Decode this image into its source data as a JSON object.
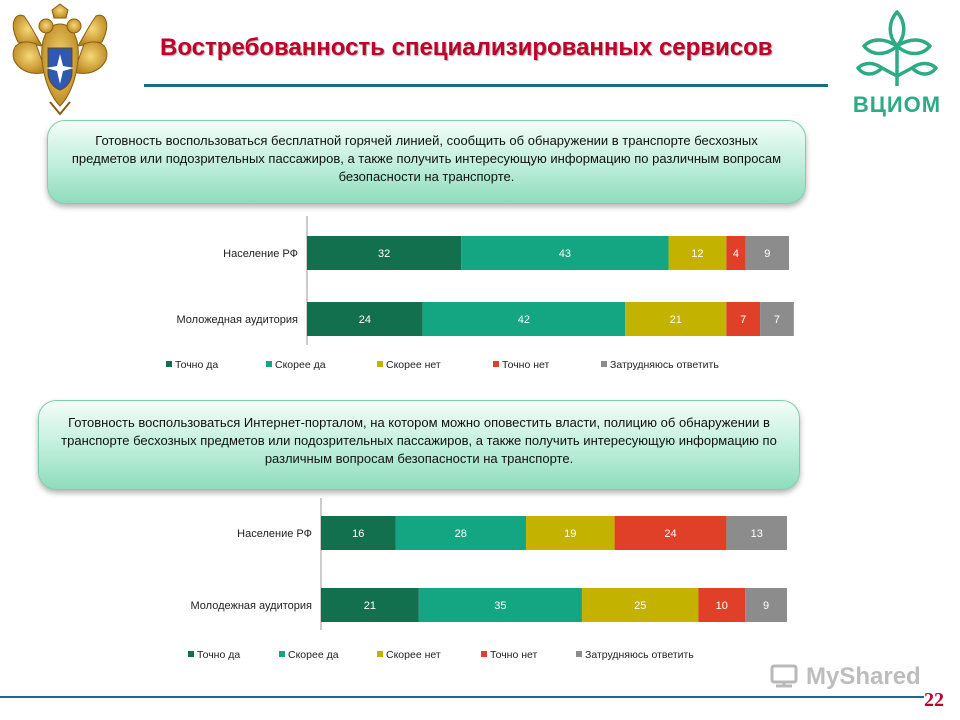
{
  "title": "Востребованность специализированных сервисов",
  "logos": {
    "left": "coat-of-arms-emblem",
    "right": "ВЦИОМ",
    "watermark": "MyShared"
  },
  "callouts": [
    "Готовность воспользоваться бесплатной горячей линией, сообщить об обнаружении в транспорте бесхозных предметов или подозрительных пассажиров, а также получить интересующую информацию по различным вопросам безопасности на транспорте.",
    "Готовность воспользоваться Интернет-порталом, на котором можно оповестить власти, полицию об обнаружении в транспорте бесхозных предметов или подозрительных пассажиров, а также получить интересующую информацию по различным вопросам безопасности на транспорте."
  ],
  "page_number": "22",
  "colors": {
    "title": "#c0002a",
    "series": [
      "#12704f",
      "#14a582",
      "#c4b200",
      "#e04028",
      "#8c8c8c"
    ]
  },
  "chart_data": [
    {
      "type": "bar",
      "orientation": "horizontal",
      "stacked": true,
      "categories": [
        "Население РФ",
        "Моложедная аудитория"
      ],
      "series": [
        {
          "name": "Точно да",
          "values": [
            32,
            24
          ]
        },
        {
          "name": "Скорее да",
          "values": [
            43,
            42
          ]
        },
        {
          "name": "Скорее нет",
          "values": [
            12,
            21
          ]
        },
        {
          "name": "Точно нет",
          "values": [
            4,
            7
          ]
        },
        {
          "name": "Затрудняюсь ответить",
          "values": [
            9,
            7
          ]
        }
      ],
      "xlim": [
        0,
        100
      ],
      "legend": "bottom",
      "grid": false
    },
    {
      "type": "bar",
      "orientation": "horizontal",
      "stacked": true,
      "categories": [
        "Население РФ",
        "Молодежная аудитория"
      ],
      "series": [
        {
          "name": "Точно да",
          "values": [
            16,
            21
          ]
        },
        {
          "name": "Скорее да",
          "values": [
            28,
            35
          ]
        },
        {
          "name": "Скорее нет",
          "values": [
            19,
            25
          ]
        },
        {
          "name": "Точно нет",
          "values": [
            24,
            10
          ]
        },
        {
          "name": "Затрудняюсь ответить",
          "values": [
            13,
            9
          ]
        }
      ],
      "xlim": [
        0,
        100
      ],
      "legend": "bottom",
      "grid": false
    }
  ]
}
